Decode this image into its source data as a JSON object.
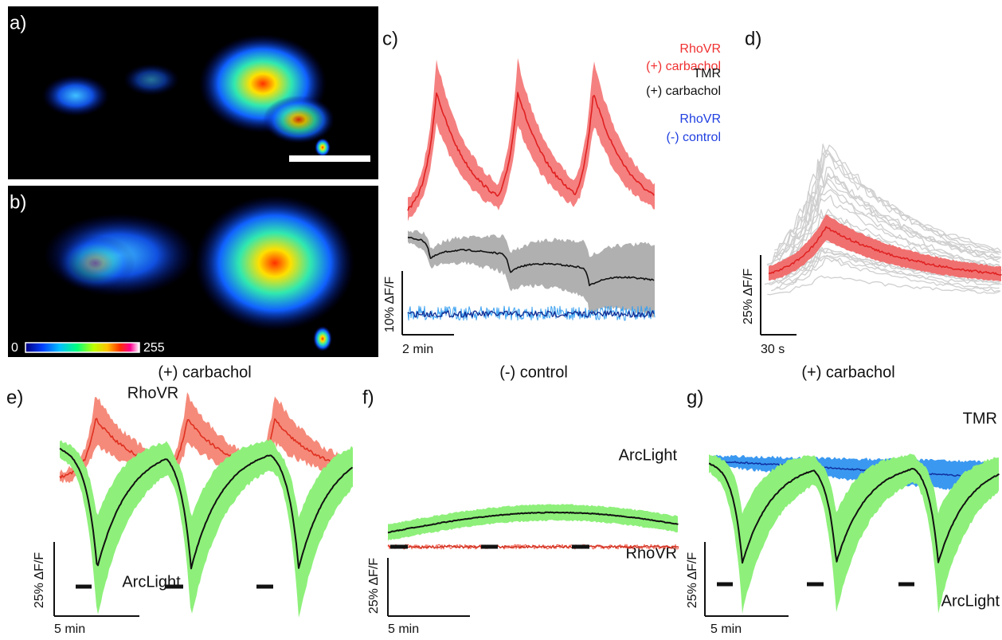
{
  "panels": {
    "a": {
      "label": "a)"
    },
    "b": {
      "label": "b)",
      "colorbar_min": 0,
      "colorbar_max": 255,
      "caption": "(+) carbachol"
    },
    "c": {
      "label": "c)",
      "legend": [
        {
          "name": "RhoVR",
          "condition": "(+) carbachol"
        },
        {
          "name": "TMR",
          "condition": "(+) carbachol"
        },
        {
          "name": "RhoVR",
          "condition": "(-) control"
        }
      ],
      "scale_y": "10% ΔF/F",
      "scale_x": "2 min",
      "caption": "(-) control"
    },
    "d": {
      "label": "d)",
      "scale_y": "25% ΔF/F",
      "scale_x": "30 s",
      "caption": "(+) carbachol"
    },
    "e": {
      "label": "e)",
      "top_trace": "RhoVR",
      "bottom_trace": "ArcLight",
      "scale_y": "25% ΔF/F",
      "scale_x": "5 min"
    },
    "f": {
      "label": "f)",
      "top_trace": "ArcLight",
      "bottom_trace": "RhoVR",
      "scale_y": "25% ΔF/F",
      "scale_x": "5 min"
    },
    "g": {
      "label": "g)",
      "top_trace": "TMR",
      "bottom_trace": "ArcLight",
      "scale_y": "25% ΔF/F",
      "scale_x": "5 min"
    }
  }
}
